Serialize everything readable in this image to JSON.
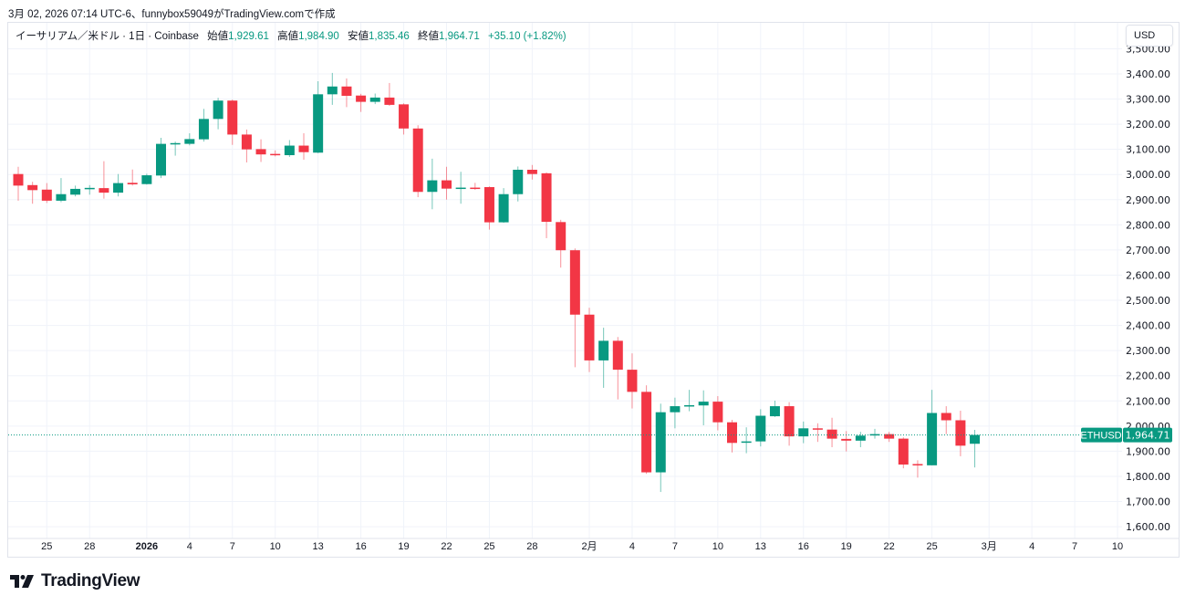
{
  "caption": "3月 02, 2026 07:14 UTC-6、funnybox59049がTradingView.comで作成",
  "legend": {
    "symbol": "イーサリアム／米ドル · 1日 · Coinbase",
    "open_label": "始値",
    "open": "1,929.61",
    "high_label": "高値",
    "high": "1,984.90",
    "low_label": "安値",
    "low": "1,835.46",
    "close_label": "終値",
    "close": "1,964.71",
    "change": "+35.10 (+1.82%)"
  },
  "currency_button": "USD",
  "last_price": {
    "ticker": "ETHUSD",
    "value": "1,964.71",
    "price": 1964.71
  },
  "logo_text": "TradingView",
  "colors": {
    "up": "#089981",
    "down": "#F23645",
    "grid": "#f0f3fa",
    "text": "#131722"
  },
  "chart_data": {
    "type": "candlestick",
    "title": "ETHUSD 1D Coinbase",
    "ylim": [
      1600,
      3500
    ],
    "y_ticks": [
      "3,500.00",
      "3,400.00",
      "3,300.00",
      "3,200.00",
      "3,100.00",
      "3,000.00",
      "2,900.00",
      "2,800.00",
      "2,700.00",
      "2,600.00",
      "2,500.00",
      "2,400.00",
      "2,300.00",
      "2,200.00",
      "2,100.00",
      "2,000.00",
      "1,900.00",
      "1,800.00",
      "1,700.00",
      "1,600.00"
    ],
    "y_tick_values": [
      3500,
      3400,
      3300,
      3200,
      3100,
      3000,
      2900,
      2800,
      2700,
      2600,
      2500,
      2400,
      2300,
      2200,
      2100,
      2000,
      1900,
      1800,
      1700,
      1600
    ],
    "x_ticks": [
      {
        "label": "25",
        "day": 2
      },
      {
        "label": "28",
        "day": 5
      },
      {
        "label": "2026",
        "day": 9,
        "bold": true
      },
      {
        "label": "4",
        "day": 12
      },
      {
        "label": "7",
        "day": 15
      },
      {
        "label": "10",
        "day": 18
      },
      {
        "label": "13",
        "day": 21
      },
      {
        "label": "16",
        "day": 24
      },
      {
        "label": "19",
        "day": 27
      },
      {
        "label": "22",
        "day": 30
      },
      {
        "label": "25",
        "day": 33
      },
      {
        "label": "28",
        "day": 36
      },
      {
        "label": "2月",
        "day": 40
      },
      {
        "label": "4",
        "day": 43
      },
      {
        "label": "7",
        "day": 46
      },
      {
        "label": "10",
        "day": 49
      },
      {
        "label": "13",
        "day": 52
      },
      {
        "label": "16",
        "day": 55
      },
      {
        "label": "19",
        "day": 58
      },
      {
        "label": "22",
        "day": 61
      },
      {
        "label": "25",
        "day": 64
      },
      {
        "label": "3月",
        "day": 68
      },
      {
        "label": "4",
        "day": 71
      },
      {
        "label": "7",
        "day": 74
      },
      {
        "label": "10",
        "day": 77
      }
    ],
    "ohlc_fields": [
      "open",
      "high",
      "low",
      "close"
    ],
    "candles": [
      [
        3002,
        3031,
        2896,
        2956
      ],
      [
        2958,
        2971,
        2884,
        2938
      ],
      [
        2940,
        2966,
        2887,
        2896
      ],
      [
        2896,
        2986,
        2890,
        2922
      ],
      [
        2920,
        2956,
        2913,
        2943
      ],
      [
        2945,
        2958,
        2920,
        2947
      ],
      [
        2946,
        3053,
        2904,
        2928
      ],
      [
        2928,
        3002,
        2913,
        2966
      ],
      [
        2967,
        3020,
        2956,
        2961
      ],
      [
        2962,
        3003,
        2960,
        2997
      ],
      [
        2996,
        3146,
        2986,
        3122
      ],
      [
        3120,
        3131,
        3075,
        3125
      ],
      [
        3122,
        3164,
        3116,
        3141
      ],
      [
        3140,
        3261,
        3131,
        3221
      ],
      [
        3221,
        3305,
        3180,
        3294
      ],
      [
        3294,
        3298,
        3118,
        3159
      ],
      [
        3159,
        3179,
        3048,
        3100
      ],
      [
        3101,
        3140,
        3050,
        3080
      ],
      [
        3082,
        3096,
        3072,
        3078
      ],
      [
        3077,
        3137,
        3070,
        3115
      ],
      [
        3115,
        3164,
        3059,
        3089
      ],
      [
        3087,
        3371,
        3085,
        3319
      ],
      [
        3319,
        3404,
        3277,
        3350
      ],
      [
        3350,
        3382,
        3268,
        3313
      ],
      [
        3314,
        3321,
        3249,
        3289
      ],
      [
        3289,
        3322,
        3280,
        3306
      ],
      [
        3306,
        3364,
        3273,
        3277
      ],
      [
        3279,
        3283,
        3159,
        3183
      ],
      [
        3183,
        3196,
        2910,
        2931
      ],
      [
        2931,
        3063,
        2862,
        2977
      ],
      [
        2977,
        3031,
        2900,
        2944
      ],
      [
        2944,
        3011,
        2884,
        2948
      ],
      [
        2948,
        2967,
        2939,
        2944
      ],
      [
        2950,
        2953,
        2781,
        2810
      ],
      [
        2810,
        2946,
        2808,
        2922
      ],
      [
        2922,
        3032,
        2893,
        3019
      ],
      [
        3019,
        3038,
        2980,
        3002
      ],
      [
        3005,
        3008,
        2747,
        2812
      ],
      [
        2811,
        2820,
        2630,
        2699
      ],
      [
        2699,
        2706,
        2234,
        2443
      ],
      [
        2443,
        2470,
        2215,
        2261
      ],
      [
        2261,
        2391,
        2152,
        2339
      ],
      [
        2339,
        2354,
        2106,
        2224
      ],
      [
        2224,
        2289,
        2070,
        2136
      ],
      [
        2136,
        2162,
        1810,
        1816
      ],
      [
        1816,
        2089,
        1738,
        2055
      ],
      [
        2055,
        2113,
        1991,
        2079
      ],
      [
        2080,
        2144,
        2059,
        2083
      ],
      [
        2082,
        2142,
        2003,
        2097
      ],
      [
        2097,
        2119,
        1983,
        2015
      ],
      [
        2015,
        2025,
        1895,
        1933
      ],
      [
        1935,
        1995,
        1892,
        1939
      ],
      [
        1939,
        2067,
        1919,
        2041
      ],
      [
        2039,
        2101,
        2036,
        2079
      ],
      [
        2079,
        2095,
        1922,
        1959
      ],
      [
        1959,
        2018,
        1932,
        1991
      ],
      [
        1991,
        2011,
        1937,
        1986
      ],
      [
        1986,
        2033,
        1916,
        1950
      ],
      [
        1949,
        1980,
        1899,
        1942
      ],
      [
        1942,
        1977,
        1916,
        1962
      ],
      [
        1964,
        1989,
        1950,
        1968
      ],
      [
        1968,
        1977,
        1937,
        1950
      ],
      [
        1950,
        1955,
        1832,
        1847
      ],
      [
        1849,
        1864,
        1795,
        1845
      ],
      [
        1844,
        2144,
        1844,
        2052
      ],
      [
        2052,
        2079,
        1968,
        2023
      ],
      [
        2023,
        2061,
        1880,
        1922
      ],
      [
        1929.61,
        1984.9,
        1835.46,
        1964.71
      ]
    ]
  }
}
